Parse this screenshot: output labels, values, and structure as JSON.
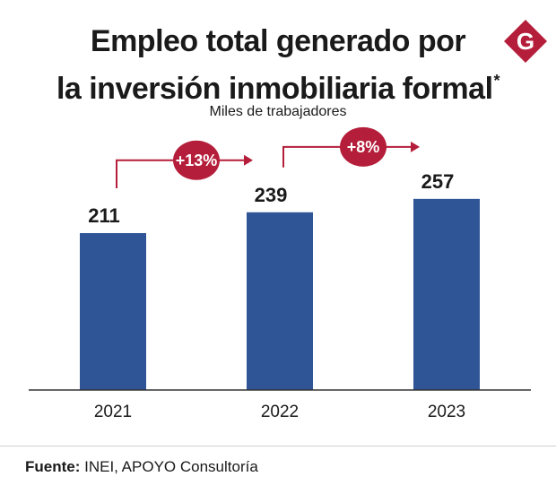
{
  "header": {
    "title_line1": "Empleo total generado por",
    "title_line2": "la inversión inmobiliaria formal",
    "title_asterisk": "*",
    "subtitle": "Miles de trabajadores",
    "logo_letter": "G"
  },
  "colors": {
    "bar": "#2f5597",
    "accent": "#b51e3a",
    "axis": "#333333",
    "text": "#1a1a1a"
  },
  "chart_data": {
    "type": "bar",
    "categories": [
      "2021",
      "2022",
      "2023"
    ],
    "values": [
      211,
      239,
      257
    ],
    "ylim": [
      0,
      300
    ],
    "grid": false,
    "growth_annotations": [
      {
        "from": "2021",
        "to": "2022",
        "label": "+13%"
      },
      {
        "from": "2022",
        "to": "2023",
        "label": "+8%"
      }
    ]
  },
  "footer": {
    "source_label": "Fuente:",
    "source_text": " INEI, APOYO Consultoría"
  }
}
